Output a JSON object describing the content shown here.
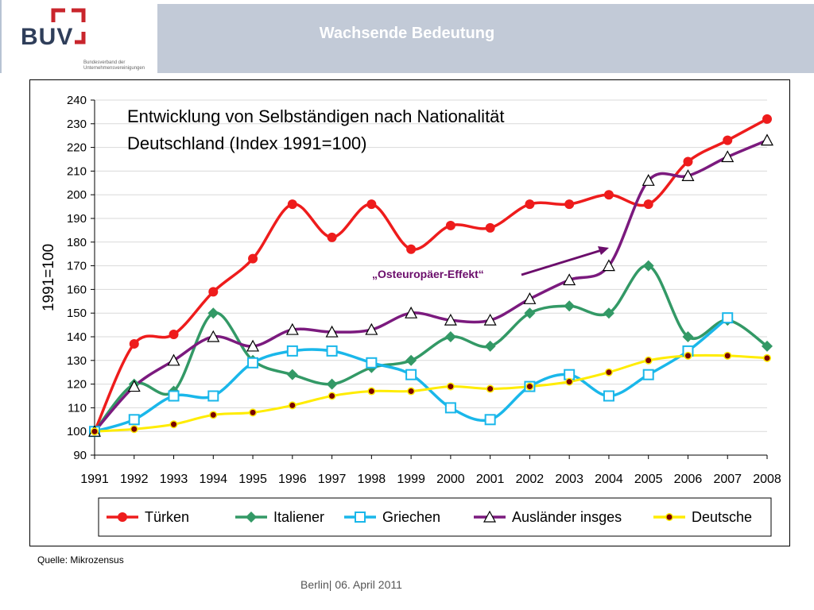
{
  "header": {
    "logo_text": "BUV",
    "logo_subtitle": "Bundesverband der Unternehmensvereinigungen",
    "title": "Wachsende Bedeutung"
  },
  "chart_data": {
    "type": "line",
    "title": "Entwicklung von Selbständigen nach Nationalität",
    "subtitle": "Deutschland (Index 1991=100)",
    "xlabel": "",
    "ylabel": "1991=100",
    "ylim": [
      90,
      240
    ],
    "yticks": [
      90,
      100,
      110,
      120,
      130,
      140,
      150,
      160,
      170,
      180,
      190,
      200,
      210,
      220,
      230,
      240
    ],
    "x": [
      "1991",
      "1992",
      "1993",
      "1994",
      "1995",
      "1996",
      "1997",
      "1998",
      "1999",
      "2000",
      "2001",
      "2002",
      "2003",
      "2004",
      "2005",
      "2006",
      "2007",
      "2008"
    ],
    "grid": "horizontal",
    "legend_position": "bottom",
    "annotation": "„Osteuropäer-Effekt“",
    "annotation_color": "#6b0d6b",
    "series": [
      {
        "name": "Türken",
        "color": "#ee1c1c",
        "marker": "circle",
        "values": [
          100,
          137,
          141,
          159,
          173,
          196,
          182,
          196,
          177,
          187,
          186,
          196,
          196,
          200,
          196,
          214,
          223,
          232
        ]
      },
      {
        "name": "Italiener",
        "color": "#339966",
        "marker": "diamond",
        "values": [
          100,
          120,
          117,
          150,
          130,
          124,
          120,
          127,
          130,
          140,
          136,
          150,
          153,
          150,
          170,
          140,
          147,
          136
        ]
      },
      {
        "name": "Griechen",
        "color": "#1ab7ea",
        "marker": "square",
        "values": [
          100,
          105,
          115,
          115,
          129,
          134,
          134,
          129,
          124,
          110,
          105,
          119,
          124,
          115,
          124,
          134,
          148,
          null
        ]
      },
      {
        "name": "Ausländer insges",
        "color": "#7b1a7e",
        "marker": "triangle",
        "values": [
          100,
          119,
          130,
          140,
          136,
          143,
          142,
          143,
          150,
          147,
          147,
          156,
          164,
          170,
          206,
          208,
          216,
          223
        ]
      },
      {
        "name": "Deutsche",
        "color": "#ffec00",
        "marker": "dot",
        "values": [
          100,
          101,
          103,
          107,
          108,
          111,
          115,
          117,
          117,
          119,
          118,
          119,
          121,
          125,
          130,
          132,
          132,
          131
        ]
      }
    ]
  },
  "source": "Quelle: Mikrozensus",
  "footer": "Berlin| 06. April 2011"
}
